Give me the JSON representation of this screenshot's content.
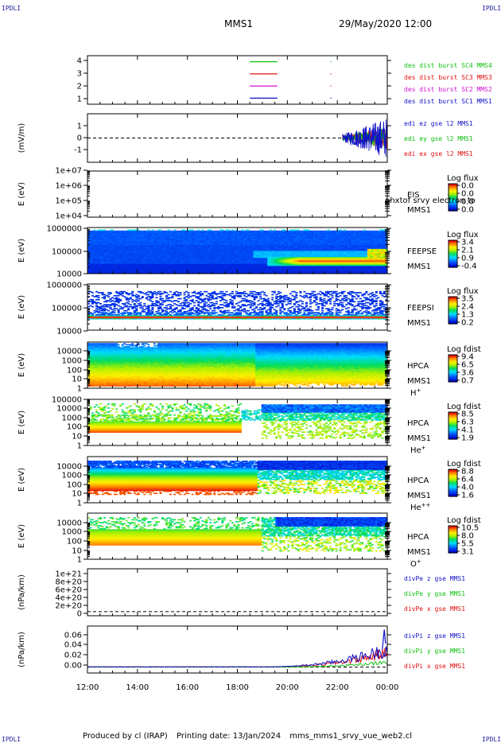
{
  "header": {
    "corner_tl": "IPDLI",
    "corner_tr": "IPDLI",
    "corner_bl": "IPDLI",
    "corner_br": "IPDLI",
    "spacecraft": "MMS1",
    "datetime": "29/May/2020 12:00"
  },
  "footer": {
    "produced_by": "Produced by cl (IRAP)",
    "printing_date": "Printing date: 13/Jan/2024",
    "filename": "mms_mms1_srvy_vue_web2.cl"
  },
  "colors": {
    "blue": "#1010c8",
    "red": "#e01010",
    "green": "#10c010",
    "magenta": "#d010d0",
    "mms1_label": "#1010a0"
  },
  "chart_data": [
    {
      "id": "burst",
      "type": "line",
      "ylabel": "",
      "ylim": [
        0.5,
        4.5
      ],
      "yticks": [
        "1",
        "2",
        "3",
        "4"
      ],
      "series": [
        {
          "name": "des dist burst SC1 MMS1",
          "color": "#1010c8",
          "y": 1,
          "segments": [
            [
              18.5,
              19.6
            ],
            [
              21.72,
              21.74
            ]
          ]
        },
        {
          "name": "des dist burst SC2 MMS2",
          "color": "#d010d0",
          "y": 2,
          "segments": [
            [
              18.5,
              19.6
            ],
            [
              21.72,
              21.74
            ]
          ]
        },
        {
          "name": "des dist burst SC3 MMS3",
          "color": "#e01010",
          "y": 3,
          "segments": [
            [
              18.5,
              19.6
            ],
            [
              21.72,
              21.74
            ]
          ]
        },
        {
          "name": "des dist burst SC4 MMS4",
          "color": "#10c010",
          "y": 4,
          "segments": [
            [
              18.5,
              19.6
            ],
            [
              21.72,
              21.74
            ]
          ]
        }
      ]
    },
    {
      "id": "edi",
      "type": "line",
      "ylabel": "(mV/m)",
      "ylim": [
        -1.6,
        1.6
      ],
      "yticks": [
        "-1",
        "0",
        "1"
      ],
      "zero_line": true,
      "active_range": [
        22.2,
        24.0
      ],
      "series": [
        {
          "name": "edi ex gse l2 MMS1",
          "color": "#e01010"
        },
        {
          "name": "edi ey gse l2 MMS1",
          "color": "#10c010"
        },
        {
          "name": "edi ez gse l2 MMS1",
          "color": "#1010c8"
        }
      ]
    },
    {
      "id": "eis",
      "type": "heatmap",
      "ylabel": "E (eV)",
      "yticks": [
        "1e+04",
        "1e+05",
        "1e+06",
        "1e+07"
      ],
      "label": [
        "EIS",
        "MMS1"
      ],
      "overlay_text": "phxtof srvy electron to",
      "colorbar_title": "Log flux",
      "colorbar_ticks": [
        "0.0",
        "0.0",
        "0.0",
        "0.0"
      ],
      "data": "empty"
    },
    {
      "id": "feepse",
      "type": "heatmap",
      "ylabel": "E (eV)",
      "yticks": [
        "10000",
        "100000",
        "1000000"
      ],
      "label": [
        "FEEPSE",
        "MMS1"
      ],
      "colorbar_title": "Log flux",
      "colorbar_ticks": [
        "3.4",
        "2.1",
        "0.9",
        "-0.4"
      ]
    },
    {
      "id": "feepsi",
      "type": "heatmap",
      "ylabel": "E (eV)",
      "yticks": [
        "10000",
        "100000",
        "1000000"
      ],
      "label": [
        "FEEPSI",
        "MMS1"
      ],
      "colorbar_title": "Log flux",
      "colorbar_ticks": [
        "3.5",
        "2.4",
        "1.3",
        "0.2"
      ]
    },
    {
      "id": "hpca_h",
      "type": "heatmap",
      "ylabel": "E (eV)",
      "yticks": [
        "1",
        "10",
        "100",
        "1000",
        "10000"
      ],
      "label": [
        "HPCA",
        "MMS1"
      ],
      "species": "H",
      "species_sup": "+",
      "colorbar_title": "Log fdist",
      "colorbar_ticks": [
        "9.4",
        "6.5",
        "3.6",
        "0.7"
      ]
    },
    {
      "id": "hpca_he",
      "type": "heatmap",
      "ylabel": "E (eV)",
      "yticks": [
        "1",
        "10",
        "100",
        "1000",
        "10000",
        "100000"
      ],
      "label": [
        "HPCA",
        "MMS1"
      ],
      "species": "He",
      "species_sup": "+",
      "colorbar_title": "Log fdist",
      "colorbar_ticks": [
        "8.5",
        "6.3",
        "4.1",
        "1.9"
      ]
    },
    {
      "id": "hpca_hepp",
      "type": "heatmap",
      "ylabel": "E (eV)",
      "yticks": [
        "1",
        "10",
        "100",
        "1000",
        "10000"
      ],
      "label": [
        "HPCA",
        "MMS1"
      ],
      "species": "He",
      "species_sup": "++",
      "colorbar_title": "Log fdist",
      "colorbar_ticks": [
        "8.8",
        "6.4",
        "4.0",
        "1.6"
      ]
    },
    {
      "id": "hpca_o",
      "type": "heatmap",
      "ylabel": "E (eV)",
      "yticks": [
        "1",
        "10",
        "100",
        "1000",
        "10000"
      ],
      "label": [
        "HPCA",
        "MMS1"
      ],
      "species": "O",
      "species_sup": "+",
      "colorbar_title": "Log fdist",
      "colorbar_ticks": [
        "10.5",
        "8.0",
        "5.5",
        "3.1"
      ]
    },
    {
      "id": "divpe",
      "type": "line",
      "ylabel": "(nPa/km)",
      "ylim": [
        -1e+20,
        1.05e+21
      ],
      "yticks": [
        "0",
        "2e+20",
        "4e+20",
        "6e+20",
        "8e+20",
        "1e+21"
      ],
      "zero_line": true,
      "series": [
        {
          "name": "divPe x gse MMS1",
          "color": "#e01010"
        },
        {
          "name": "divPe y gse MMS1",
          "color": "#10c010"
        },
        {
          "name": "divPe z gse MMS1",
          "color": "#1010c8"
        }
      ]
    },
    {
      "id": "divpi",
      "type": "line",
      "ylabel": "(nPa/km)",
      "ylim": [
        -0.01,
        0.07
      ],
      "yticks": [
        "0.00",
        "0.02",
        "0.04",
        "0.06"
      ],
      "zero_line": true,
      "series": [
        {
          "name": "divPi x gse MMS1",
          "color": "#e01010"
        },
        {
          "name": "divPi y gse MMS1",
          "color": "#10c010"
        },
        {
          "name": "divPi z gse MMS1",
          "color": "#1010c8"
        }
      ]
    }
  ],
  "time_axis": {
    "start_hour": 12,
    "end_hour": 24,
    "ticks": [
      "12:00",
      "14:00",
      "16:00",
      "18:00",
      "20:00",
      "22:00",
      "00:00"
    ]
  }
}
